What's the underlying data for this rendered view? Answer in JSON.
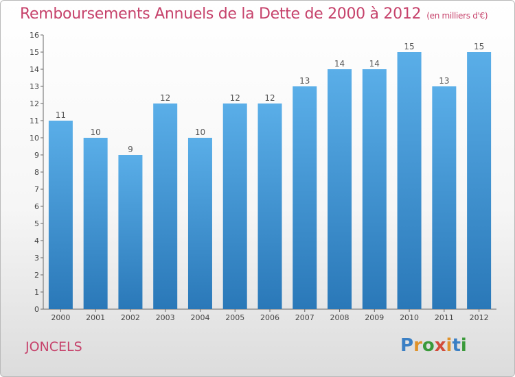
{
  "title": "Remboursements Annuels de la Dette de 2000 à 2012",
  "unit": "(en milliers d'€)",
  "commune": "JONCELS",
  "logo": {
    "letters": [
      "P",
      "r",
      "o",
      "x",
      "i",
      "t",
      "i"
    ],
    "colors": [
      "#3a7fc4",
      "#e0922a",
      "#3a9a3a",
      "#d24c3a",
      "#e0922a",
      "#3a7fc4",
      "#3a9a3a"
    ]
  },
  "colors": {
    "bar_light": "#5aaee8",
    "bar_dark": "#2a78b8",
    "title": "#c6426b"
  },
  "chart_data": {
    "type": "bar",
    "categories": [
      "2000",
      "2001",
      "2002",
      "2003",
      "2004",
      "2005",
      "2006",
      "2007",
      "2008",
      "2009",
      "2010",
      "2011",
      "2012"
    ],
    "values": [
      11,
      10,
      9,
      12,
      10,
      12,
      12,
      13,
      14,
      14,
      15,
      13,
      15
    ],
    "value_labels": [
      "11",
      "10",
      "9",
      "12",
      "10",
      "12",
      "12",
      "13",
      "14",
      "14",
      "15",
      "13",
      "15"
    ],
    "ylim": [
      0,
      16
    ],
    "yticks": [
      "0",
      "1",
      "2",
      "3",
      "4",
      "5",
      "6",
      "7",
      "8",
      "9",
      "10",
      "11",
      "12",
      "13",
      "14",
      "15",
      "16"
    ],
    "grid": false
  }
}
